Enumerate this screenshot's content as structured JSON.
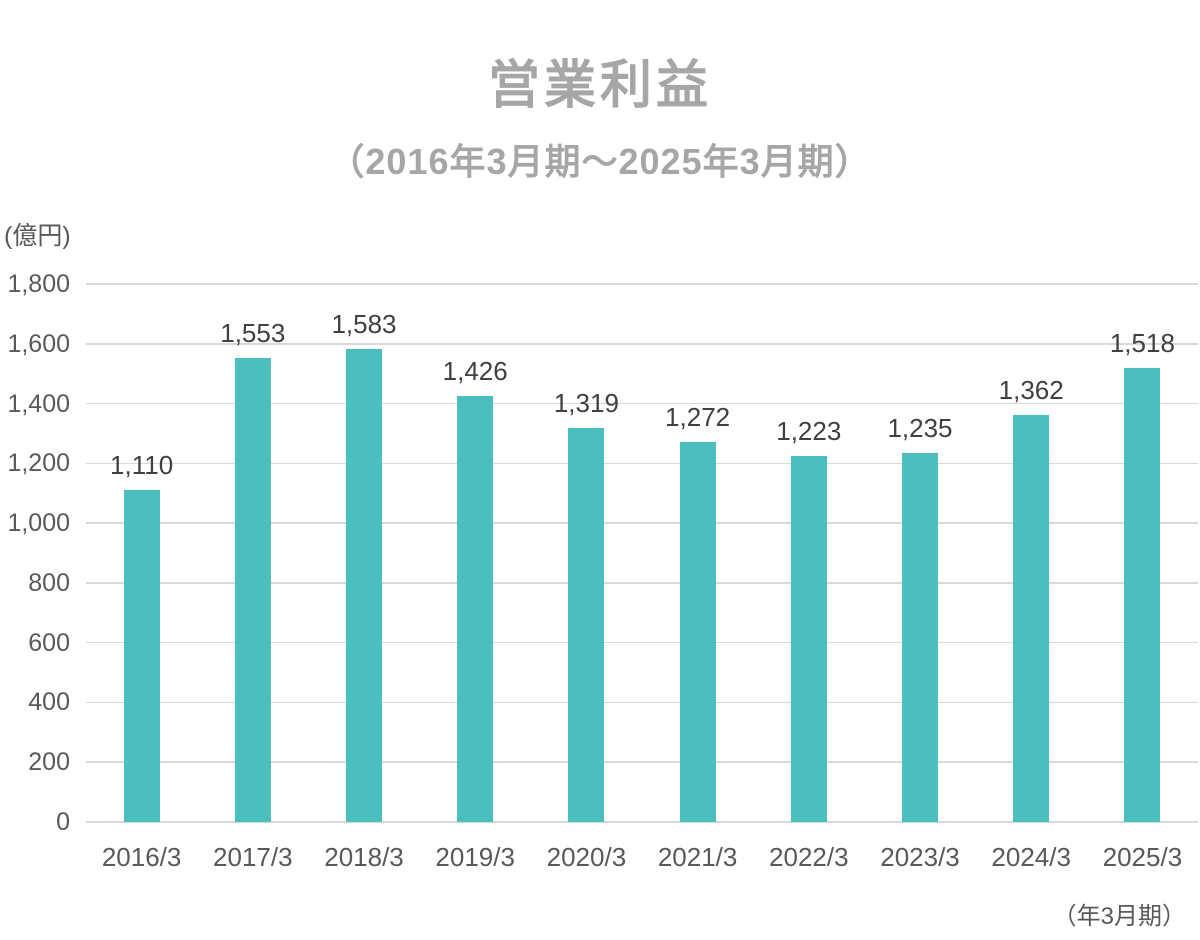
{
  "page": {
    "title": "営業利益",
    "subtitle": "（2016年3月期～2025年3月期）",
    "unit_label": "(億円)",
    "x_axis_note": "（年3月期）"
  },
  "colors": {
    "bar": "#4BBEBE",
    "title_text": "#A6A6A6",
    "data_label": "#404040",
    "axis_label": "#595959",
    "gridline": "#D9D9D9",
    "background": "#FFFFFF"
  },
  "chart_data": {
    "type": "bar",
    "title": "営業利益",
    "subtitle": "（2016年3月期～2025年3月期）",
    "ylabel": "(億円)",
    "xlabel": "（年3月期）",
    "categories": [
      "2016/3",
      "2017/3",
      "2018/3",
      "2019/3",
      "2020/3",
      "2021/3",
      "2022/3",
      "2023/3",
      "2024/3",
      "2025/3"
    ],
    "values": [
      1110,
      1553,
      1583,
      1426,
      1319,
      1272,
      1223,
      1235,
      1362,
      1518
    ],
    "value_labels": [
      "1,110",
      "1,553",
      "1,583",
      "1,426",
      "1,319",
      "1,272",
      "1,223",
      "1,235",
      "1,362",
      "1,518"
    ],
    "ylim": [
      0,
      1800
    ],
    "ytick_interval": 200,
    "ytick_labels": [
      "0",
      "200",
      "400",
      "600",
      "800",
      "1,000",
      "1,200",
      "1,400",
      "1,600",
      "1,800"
    ],
    "grid": true,
    "legend": false,
    "series_name": "営業利益"
  }
}
